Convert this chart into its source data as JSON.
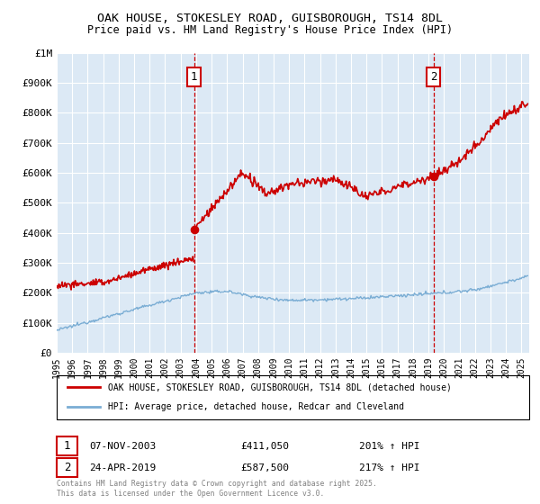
{
  "title1": "OAK HOUSE, STOKESLEY ROAD, GUISBOROUGH, TS14 8DL",
  "title2": "Price paid vs. HM Land Registry's House Price Index (HPI)",
  "ylim": [
    0,
    1000000
  ],
  "xlim_start": 1995.0,
  "xlim_end": 2025.5,
  "background_color": "#ffffff",
  "plot_background": "#dce9f5",
  "grid_color": "#ffffff",
  "red_color": "#cc0000",
  "blue_color": "#7aadd4",
  "point1_x": 2003.86,
  "point1_y": 411050,
  "point2_x": 2019.32,
  "point2_y": 587500,
  "legend_line1": "OAK HOUSE, STOKESLEY ROAD, GUISBOROUGH, TS14 8DL (detached house)",
  "legend_line2": "HPI: Average price, detached house, Redcar and Cleveland",
  "ann1_date": "07-NOV-2003",
  "ann1_price": "£411,050",
  "ann1_hpi": "201% ↑ HPI",
  "ann2_date": "24-APR-2019",
  "ann2_price": "£587,500",
  "ann2_hpi": "217% ↑ HPI",
  "footnote": "Contains HM Land Registry data © Crown copyright and database right 2025.\nThis data is licensed under the Open Government Licence v3.0."
}
